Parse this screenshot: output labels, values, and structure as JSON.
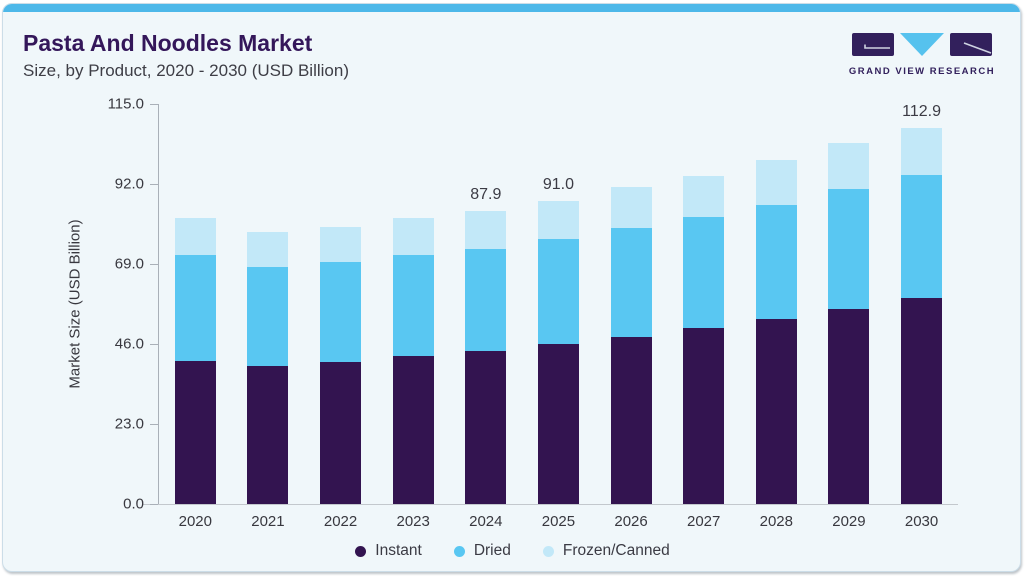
{
  "header": {
    "title": "Pasta And Noodles Market",
    "subtitle": "Size, by Product, 2020 - 2030 (USD Billion)",
    "logo_text": "GRAND VIEW RESEARCH"
  },
  "colors": {
    "accent_strip": "#4db8e9",
    "card_background": "#f0f7fa",
    "title_purple": "#34175a",
    "subtitle_gray": "#3e3e46",
    "axis_text": "#38383f",
    "data_label": "#3b3b44",
    "logo_purple": "#32205c",
    "logo_cyan": "#56c2ee",
    "instant": "#331450",
    "dried": "#59c7f2",
    "frozen_canned": "#c2e8f8"
  },
  "chart_data": {
    "type": "bar",
    "stacked": true,
    "title": "Pasta And Noodles Market Size, by Product, 2020 - 2030 (USD Billion)",
    "xlabel": "",
    "ylabel": "Market Size (USD Billion)",
    "ylim": [
      0,
      115
    ],
    "yticks": [
      "115.0",
      "92.0",
      "69.0",
      "46.0",
      "23.0",
      "0.0"
    ],
    "grid": false,
    "legend_position": "bottom",
    "categories": [
      "2020",
      "2021",
      "2022",
      "2023",
      "2024",
      "2025",
      "2026",
      "2027",
      "2028",
      "2029",
      "2030"
    ],
    "series": [
      {
        "name": "Instant",
        "color_key": "instant",
        "values": [
          42.8,
          41.3,
          42.5,
          44.3,
          45.9,
          47.9,
          50.2,
          52.7,
          55.4,
          58.4,
          61.7
        ]
      },
      {
        "name": "Dried",
        "color_key": "dried",
        "values": [
          31.8,
          29.9,
          30.2,
          30.5,
          30.6,
          31.5,
          32.6,
          33.4,
          34.4,
          36.0,
          37.1
        ]
      },
      {
        "name": "Frozen/Canned",
        "color_key": "frozen_canned",
        "values": [
          11.1,
          10.5,
          10.5,
          11.0,
          11.4,
          11.6,
          12.2,
          12.4,
          13.3,
          13.8,
          14.1
        ]
      }
    ],
    "total_labels": {
      "2024": "87.9",
      "2025": "91.0",
      "2030": "112.9"
    }
  }
}
